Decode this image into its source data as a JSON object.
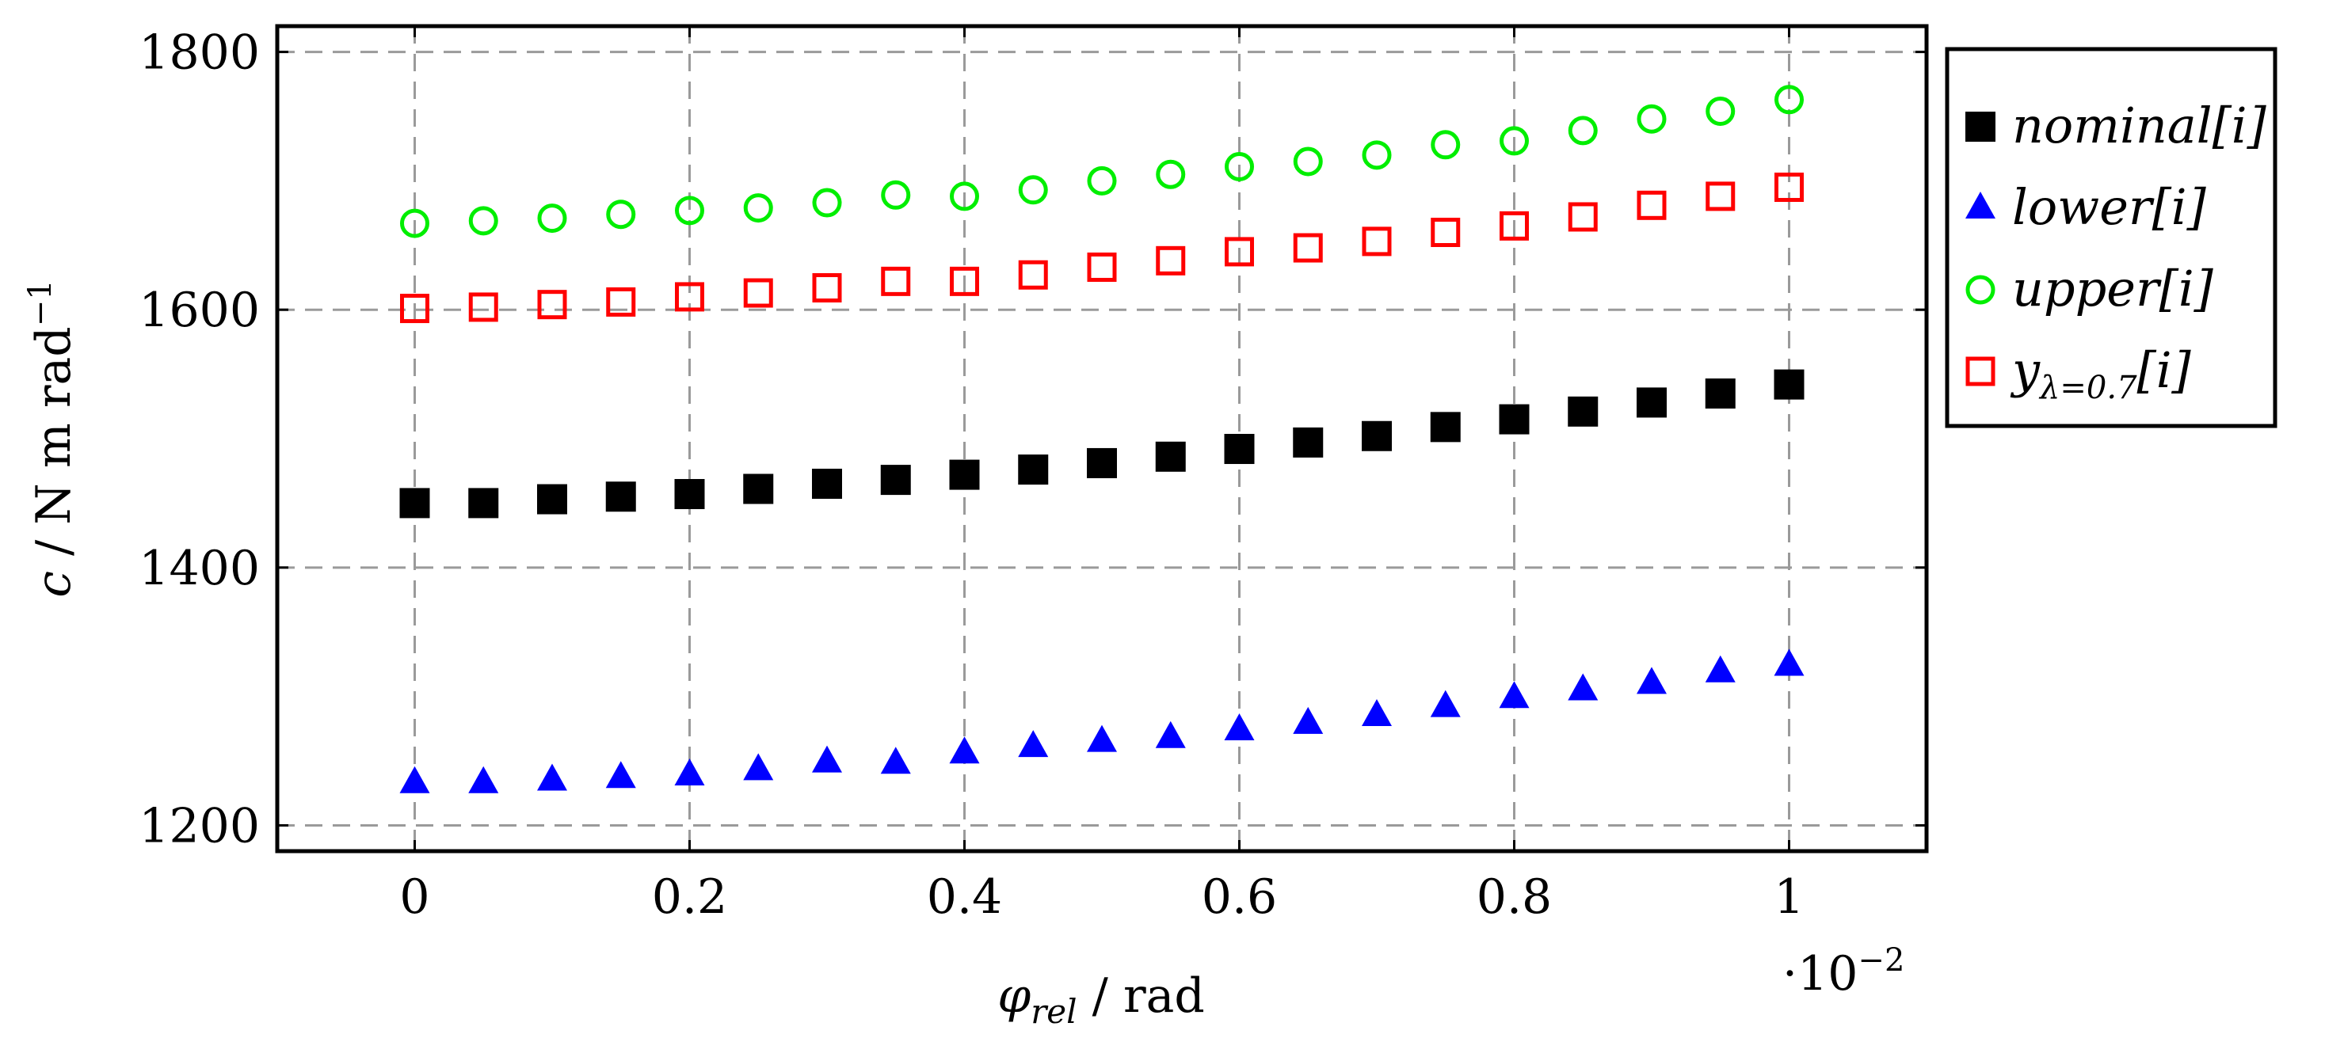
{
  "chart_data": {
    "type": "scatter",
    "title": "",
    "xlabel": {
      "main": "φ",
      "sub": "rel",
      "unit": " / rad"
    },
    "ylabel": {
      "main": "c",
      "unit": " / N m rad",
      "sup": "−1"
    },
    "x_multiplier": {
      "prefix": "·10",
      "sup": "−2"
    },
    "xlim": [
      -0.1,
      1.1
    ],
    "ylim": [
      1180,
      1820
    ],
    "x_ticks": [
      0,
      0.2,
      0.4,
      0.6,
      0.8,
      1
    ],
    "x_tick_labels": [
      "0",
      "0.2",
      "0.4",
      "0.6",
      "0.8",
      "1"
    ],
    "y_ticks": [
      1200,
      1400,
      1600,
      1800
    ],
    "y_tick_labels": [
      "1200",
      "1400",
      "1600",
      "1800"
    ],
    "grid": true,
    "legend_position": "outside-right-top",
    "x": [
      0,
      0.05,
      0.1,
      0.15,
      0.2,
      0.25,
      0.3,
      0.35,
      0.4,
      0.45,
      0.5,
      0.55,
      0.6,
      0.65,
      0.7,
      0.75,
      0.8,
      0.85,
      0.9,
      0.95,
      1.0
    ],
    "series": [
      {
        "name": "nominal",
        "legend_label": {
          "main": "nominal",
          "suffix": "[i]"
        },
        "marker": "square-filled",
        "color": "#000000",
        "values": [
          1450,
          1450,
          1453,
          1455,
          1457,
          1461,
          1465,
          1468,
          1472,
          1476,
          1481,
          1486,
          1492,
          1497,
          1502,
          1509,
          1515,
          1521,
          1528,
          1535,
          1542
        ]
      },
      {
        "name": "lower",
        "legend_label": {
          "main": "lower",
          "suffix": "[i]"
        },
        "marker": "triangle-filled",
        "color": "#0000ff",
        "values": [
          1233,
          1233,
          1235,
          1237,
          1239,
          1243,
          1249,
          1248,
          1256,
          1261,
          1265,
          1268,
          1274,
          1279,
          1285,
          1292,
          1299,
          1305,
          1310,
          1319,
          1324
        ]
      },
      {
        "name": "upper",
        "legend_label": {
          "main": "upper",
          "suffix": "[i]"
        },
        "marker": "circle-open",
        "color": "#00ee00",
        "values": [
          1667,
          1669,
          1671,
          1674,
          1677,
          1679,
          1683,
          1689,
          1688,
          1693,
          1700,
          1705,
          1711,
          1715,
          1720,
          1728,
          1731,
          1739,
          1748,
          1754,
          1763
        ]
      },
      {
        "name": "y_lambda_0.7",
        "legend_label": {
          "main": "y",
          "sub": "λ=0.7",
          "suffix": "[i]"
        },
        "marker": "square-open",
        "color": "#ff0000",
        "values": [
          1601,
          1602,
          1604,
          1606,
          1610,
          1613,
          1617,
          1622,
          1622,
          1627,
          1633,
          1638,
          1645,
          1648,
          1653,
          1660,
          1665,
          1672,
          1681,
          1688,
          1695
        ]
      }
    ]
  }
}
